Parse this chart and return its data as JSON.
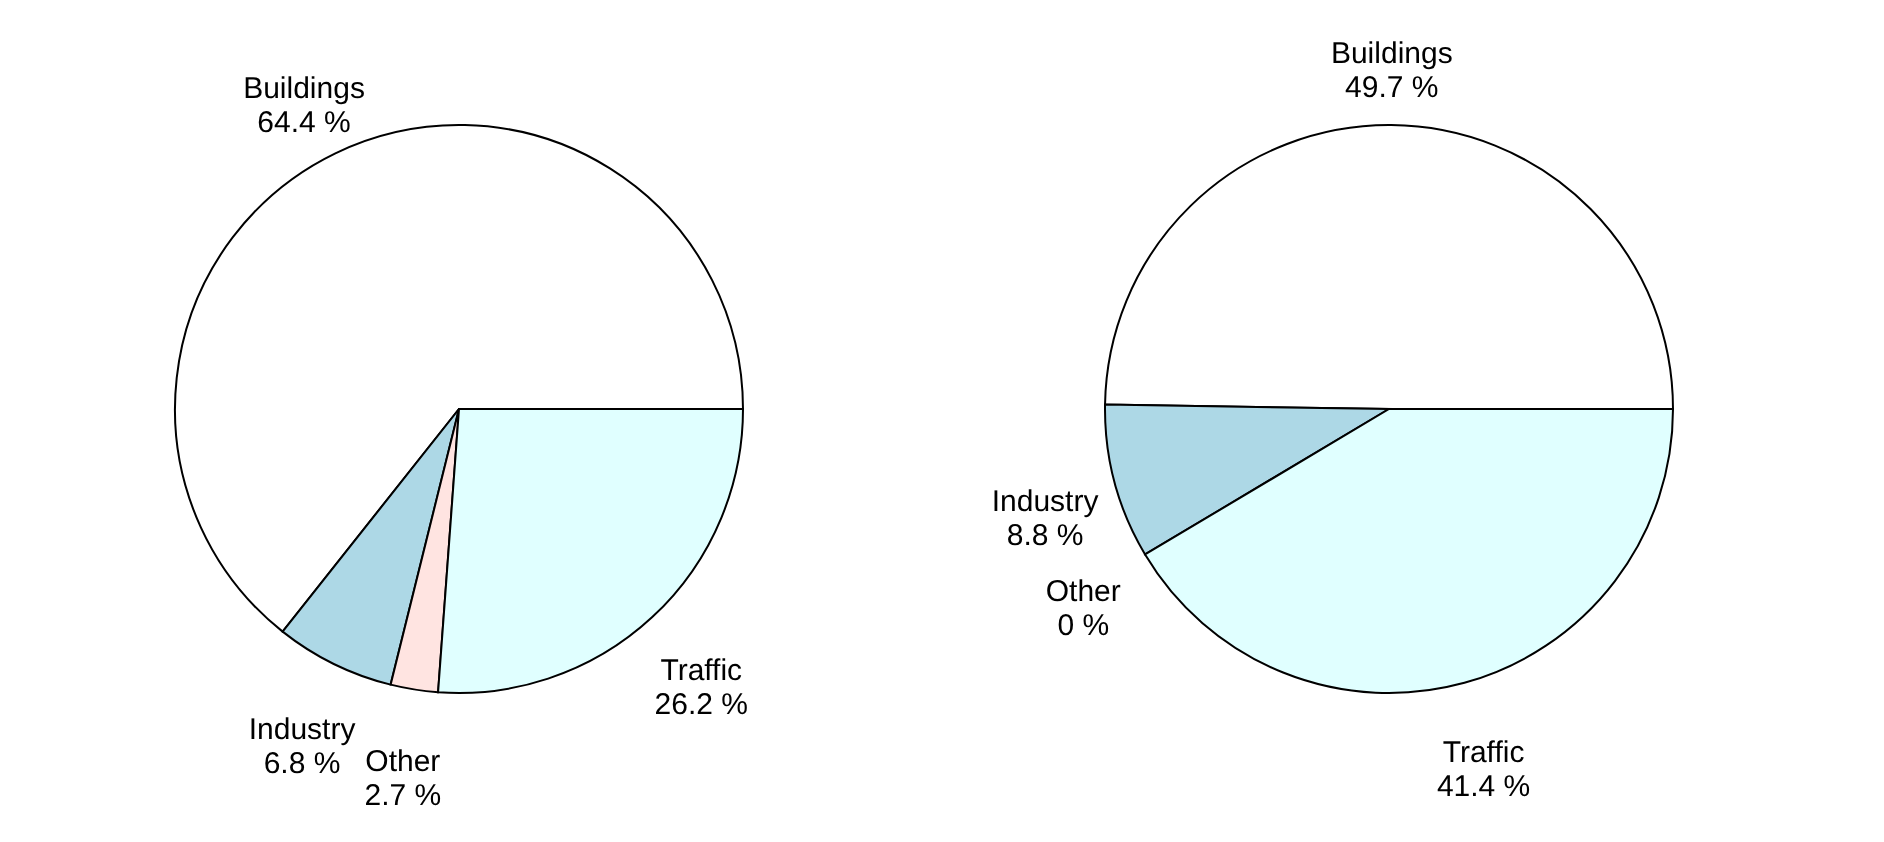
{
  "chart_data": [
    {
      "type": "pie",
      "categories": [
        "Buildings",
        "Industry",
        "Other",
        "Traffic"
      ],
      "values": [
        64.4,
        6.8,
        2.7,
        26.2
      ],
      "value_labels": [
        "64.4 %",
        "6.8 %",
        "2.7 %",
        "26.2 %"
      ],
      "colors": [
        "#ffffff",
        "#add8e6",
        "#ffe4e1",
        "#e0ffff"
      ]
    },
    {
      "type": "pie",
      "categories": [
        "Buildings",
        "Industry",
        "Other",
        "Traffic"
      ],
      "values": [
        49.7,
        8.8,
        0,
        41.4
      ],
      "value_labels": [
        "49.7 %",
        "8.8 %",
        "0 %",
        "41.4 %"
      ],
      "colors": [
        "#ffffff",
        "#add8e6",
        "#ffe4e1",
        "#e0ffff"
      ]
    }
  ]
}
